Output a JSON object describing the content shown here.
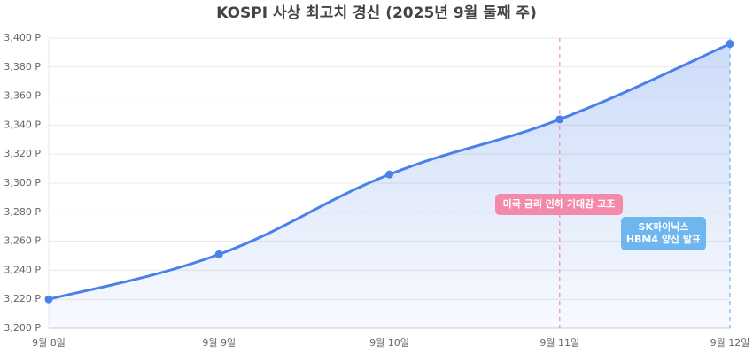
{
  "chart_data": {
    "type": "line",
    "title": "KOSPI 사상 최고치 경신 (2025년 9월 둘째 주)",
    "categories": [
      "9월 8일",
      "9월 9일",
      "9월 10일",
      "9월 11일",
      "9월 12일"
    ],
    "series": [
      {
        "name": "KOSPI",
        "color": "#4a80ea",
        "values": [
          3220,
          3251,
          3306,
          3344,
          3396
        ]
      }
    ],
    "ylim": [
      3200,
      3400
    ],
    "yticks": [
      {
        "value": 3200,
        "label": "3,200 P"
      },
      {
        "value": 3220,
        "label": "3,220 P"
      },
      {
        "value": 3240,
        "label": "3,240 P"
      },
      {
        "value": 3260,
        "label": "3,260 P"
      },
      {
        "value": 3280,
        "label": "3,280 P"
      },
      {
        "value": 3300,
        "label": "3,300 P"
      },
      {
        "value": 3320,
        "label": "3,320 P"
      },
      {
        "value": 3340,
        "label": "3,340 P"
      },
      {
        "value": 3360,
        "label": "3,360 P"
      },
      {
        "value": 3380,
        "label": "3,380 P"
      },
      {
        "value": 3400,
        "label": "3,400 P"
      }
    ],
    "grid": true,
    "annotations": [
      {
        "x": "9월 11일",
        "lines": [
          "미국 금리 인하 기대감 고조"
        ],
        "color": "#f48aaa"
      },
      {
        "x": "9월 12일",
        "lines": [
          "SK하이닉스",
          "HBM4 양산 발표"
        ],
        "color": "#6fb6ee"
      }
    ]
  }
}
